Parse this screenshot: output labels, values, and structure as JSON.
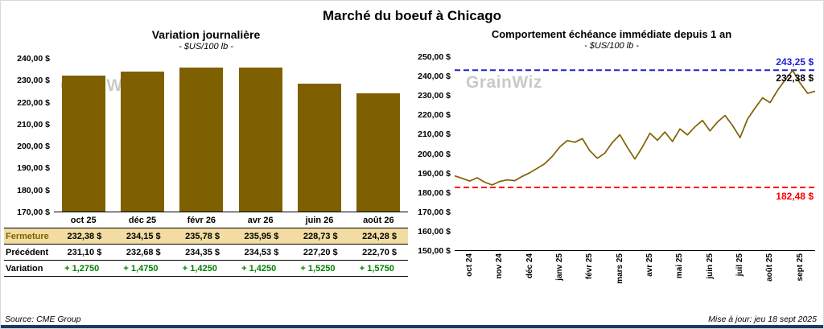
{
  "page": {
    "title": "Marché du boeuf à Chicago",
    "source": "Source: CME Group",
    "updated": "Mise à jour: jeu 18 sept 2025",
    "watermark": "GrainWiz",
    "accent_navy": "#1f3864"
  },
  "left": {
    "title": "Variation journalière",
    "subtitle": "- $US/100 lb -"
  },
  "right": {
    "title": "Comportement échéance immédiate depuis 1 an",
    "subtitle": "- $US/100 lb -"
  },
  "table": {
    "row_labels": [
      "Fermeture",
      "Précédent",
      "Variation"
    ],
    "columns": [
      "oct 25",
      "déc 25",
      "févr 26",
      "avr 26",
      "juin 26",
      "août 26"
    ],
    "fermeture": [
      "232,38  $",
      "234,15  $",
      "235,78  $",
      "235,95  $",
      "228,73  $",
      "224,28  $"
    ],
    "precedent": [
      "231,10  $",
      "232,68  $",
      "234,35  $",
      "234,53  $",
      "227,20  $",
      "222,70  $"
    ],
    "variation": [
      "+ 1,2750",
      "+ 1,4750",
      "+ 1,4250",
      "+ 1,4250",
      "+ 1,5250",
      "+ 1,5750"
    ]
  },
  "chart_data": [
    {
      "type": "bar",
      "title": "Variation journalière",
      "subtitle": "- $US/100 lb -",
      "categories": [
        "oct 25",
        "déc 25",
        "févr 26",
        "avr 26",
        "juin 26",
        "août 26"
      ],
      "values": [
        232.38,
        234.15,
        235.78,
        235.95,
        228.73,
        224.28
      ],
      "ylim": [
        170,
        240
      ],
      "ytick_step": 10,
      "bar_color": "#7f6000",
      "grid": false,
      "legend": false
    },
    {
      "type": "line",
      "title": "Comportement échéance immédiate depuis 1 an",
      "subtitle": "- $US/100 lb -",
      "x_categories": [
        "oct 24",
        "nov 24",
        "déc 24",
        "janv 25",
        "févr 25",
        "mars 25",
        "avr 25",
        "mai 25",
        "juin 25",
        "juil 25",
        "août 25",
        "sept 25"
      ],
      "ylim": [
        150,
        250
      ],
      "ytick_step": 10,
      "line_color": "#7f6000",
      "grid": false,
      "legend": false,
      "max_line": {
        "value": 243.25,
        "label": "243,25 $",
        "color": "#2222cc"
      },
      "min_line": {
        "value": 182.48,
        "label": "182,48 $",
        "color": "#ff0000"
      },
      "last_label": {
        "value": 232.38,
        "label": "232,38 $",
        "color": "#000000"
      },
      "points": [
        188.5,
        187.2,
        185.8,
        187.5,
        185.2,
        183.8,
        185.6,
        186.4,
        186.0,
        188.2,
        190.1,
        192.4,
        194.8,
        198.6,
        203.5,
        206.8,
        205.9,
        207.8,
        201.5,
        197.6,
        200.3,
        205.8,
        209.8,
        203.2,
        197.2,
        203.4,
        210.6,
        206.9,
        211.2,
        206.3,
        212.8,
        209.7,
        213.9,
        217.2,
        211.8,
        216.4,
        219.8,
        214.6,
        208.3,
        217.9,
        223.6,
        228.9,
        226.4,
        232.8,
        238.2,
        243.1,
        236.5,
        231.2,
        232.38
      ]
    }
  ]
}
